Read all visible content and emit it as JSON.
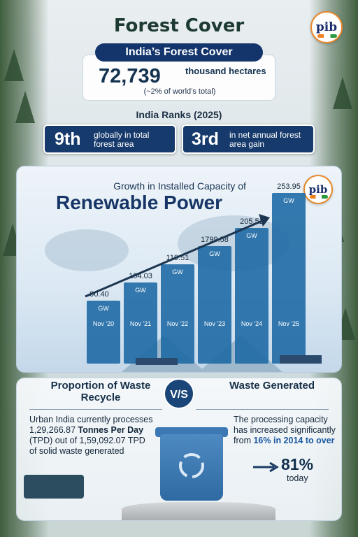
{
  "header": {
    "title": "Forest Cover",
    "logo_text": "pib"
  },
  "forest_cover": {
    "label": "India’s Forest Cover",
    "value": "72,739",
    "unit": "thousand hectares",
    "note": "(~2% of world’s total)"
  },
  "ranks": {
    "title": "India Ranks (2025)",
    "items": [
      {
        "rank": "9th",
        "desc": "globally in total forest area"
      },
      {
        "rank": "3rd",
        "desc": "in net annual forest area gain"
      }
    ]
  },
  "renewable": {
    "subtitle": "Growth in Installed Capacity of",
    "title": "Renewable Power"
  },
  "chart_data": {
    "type": "bar",
    "title": "Renewable Power",
    "subtitle": "Growth in Installed Capacity of",
    "categories": [
      "Nov '20",
      "Nov '21",
      "Nov '22",
      "Nov '23",
      "Nov '24",
      "Nov '25"
    ],
    "values": [
      90.4,
      104.03,
      119.51,
      1799.58,
      205.52,
      253.95
    ],
    "value_labels": [
      "90.40",
      "104.03",
      "119.51",
      "1799.58",
      "205.52",
      "253.95"
    ],
    "unit": "GW",
    "bar_color": "#1f6aa5",
    "trend_arrow": true
  },
  "waste": {
    "left_heading": "Proportion of Waste Recycle",
    "vs_label": "V/S",
    "right_heading": "Waste Generated",
    "left_text_a": "Urban India currently processes 1,29,266.87",
    "left_text_b": "Tonnes Per Day",
    "left_text_c": "(TPD) out of 1,59,092.07 TPD of solid waste generated",
    "right_text_a": "The processing capacity has increased significantly from",
    "right_text_b": "16% in 2014 to over",
    "right_pct": "81%",
    "right_sub": "today"
  },
  "colors": {
    "navy": "#13356c",
    "rank_card": "#163a6b",
    "bar": "#1f6aa5",
    "accent_blue": "#1a57a0"
  }
}
